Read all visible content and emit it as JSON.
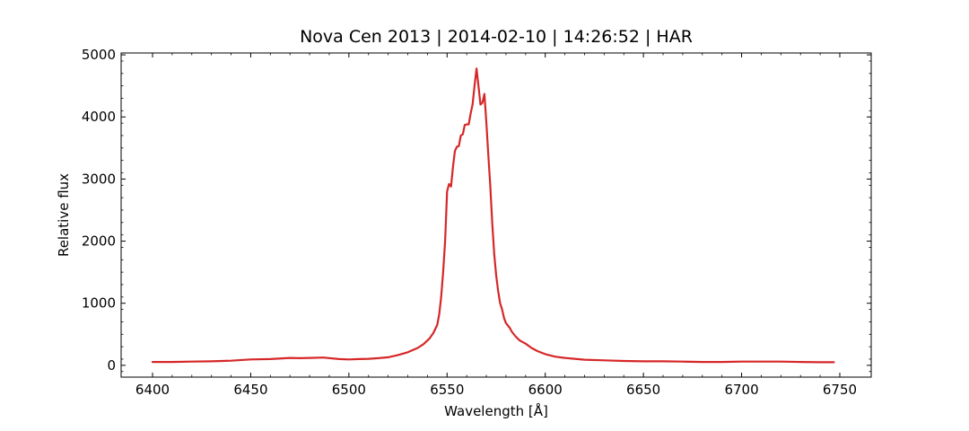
{
  "chart_data": {
    "type": "line",
    "title": "Nova Cen 2013 | 2014-02-10 | 14:26:52 | HAR",
    "xlabel": "Wavelength [Å]",
    "ylabel": "Relative flux",
    "xlim": [
      6384,
      6766
    ],
    "ylim": [
      -190,
      5030
    ],
    "xticks": [
      6400,
      6450,
      6500,
      6550,
      6600,
      6650,
      6700,
      6750
    ],
    "yticks": [
      0,
      1000,
      2000,
      3000,
      4000,
      5000
    ],
    "xtick_labels": [
      "6400",
      "6450",
      "6500",
      "6550",
      "6600",
      "6650",
      "6700",
      "6750"
    ],
    "ytick_labels": [
      "0",
      "1000",
      "2000",
      "3000",
      "4000",
      "5000"
    ],
    "grid": false,
    "legend": "none",
    "series": [
      {
        "color": "#d62728",
        "x": [
          6400,
          6410,
          6420,
          6430,
          6440,
          6450,
          6460,
          6470,
          6475,
          6480,
          6487,
          6495,
          6500,
          6505,
          6510,
          6515,
          6520,
          6525,
          6530,
          6535,
          6538,
          6541,
          6543,
          6545,
          6546,
          6547,
          6548,
          6549,
          6550,
          6551,
          6552,
          6553,
          6554,
          6555,
          6556,
          6557,
          6558,
          6559,
          6560,
          6561,
          6562,
          6563,
          6564,
          6565,
          6566,
          6567,
          6568,
          6569,
          6570,
          6571,
          6572,
          6573,
          6574,
          6575,
          6576,
          6577,
          6578,
          6579,
          6580,
          6581,
          6582,
          6583,
          6585,
          6587,
          6590,
          6593,
          6596,
          6600,
          6605,
          6610,
          6615,
          6620,
          6630,
          6640,
          6650,
          6660,
          6670,
          6680,
          6690,
          6700,
          6710,
          6720,
          6730,
          6740,
          6747
        ],
        "y": [
          55,
          55,
          60,
          65,
          75,
          95,
          100,
          120,
          115,
          120,
          125,
          100,
          95,
          100,
          105,
          115,
          130,
          165,
          210,
          280,
          340,
          430,
          520,
          650,
          820,
          1100,
          1500,
          2000,
          2800,
          2920,
          2880,
          3200,
          3450,
          3520,
          3530,
          3700,
          3720,
          3870,
          3880,
          3880,
          4050,
          4200,
          4500,
          4780,
          4500,
          4200,
          4230,
          4370,
          3900,
          3400,
          2900,
          2300,
          1800,
          1450,
          1200,
          1000,
          900,
          760,
          680,
          640,
          600,
          540,
          460,
          400,
          350,
          280,
          230,
          180,
          140,
          120,
          105,
          90,
          80,
          70,
          65,
          65,
          60,
          55,
          55,
          60,
          60,
          60,
          55,
          50,
          50
        ]
      }
    ]
  }
}
